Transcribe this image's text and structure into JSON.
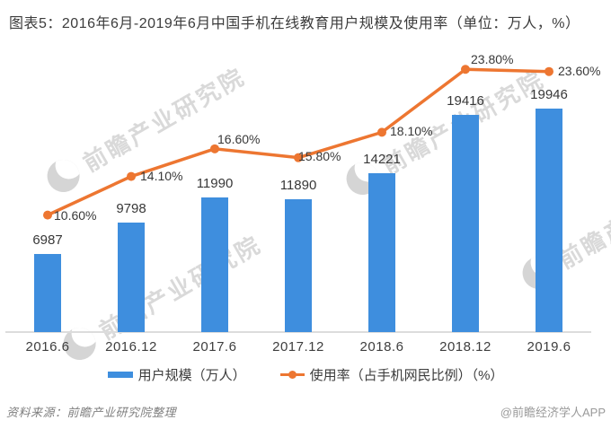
{
  "title": "图表5：2016年6月-2019年6月中国手机在线教育用户规模及使用率（单位：万人，%）",
  "chart_data": {
    "type": "bar",
    "combo": "bar+line",
    "title": "图表5：2016年6月-2019年6月中国手机在线教育用户规模及使用率（单位：万人，%）",
    "categories": [
      "2016.6",
      "2016.12",
      "2017.6",
      "2017.12",
      "2018.6",
      "2018.12",
      "2019.6"
    ],
    "series": [
      {
        "name": "用户规模（万人）",
        "type": "bar",
        "unit": "万人",
        "color": "#3E8EDE",
        "values": [
          6987,
          9798,
          11990,
          11890,
          14221,
          19416,
          19946
        ],
        "value_labels": [
          "6987",
          "9798",
          "11990",
          "11890",
          "14221",
          "19416",
          "19946"
        ]
      },
      {
        "name": "使用率（占手机网民比例）（%）",
        "type": "line",
        "unit": "%",
        "color": "#ED7631",
        "values": [
          10.6,
          14.1,
          16.6,
          15.8,
          18.1,
          23.8,
          23.6
        ],
        "value_labels": [
          "10.60%",
          "14.10%",
          "16.60%",
          "15.80%",
          "18.10%",
          "23.80%",
          "23.60%"
        ]
      }
    ],
    "legend_position": "bottom",
    "grid": false,
    "y_axis_visible": false
  },
  "colors": {
    "bar": "#3E8EDE",
    "line": "#ED7631",
    "axis": "#dcdcdc",
    "text": "#3c3c3c"
  },
  "watermark": {
    "text": "前瞻产业研究院"
  },
  "footer": {
    "source_note": "资料来源：前瞻产业研究院整理",
    "brand": "@前瞻经济学人APP"
  }
}
